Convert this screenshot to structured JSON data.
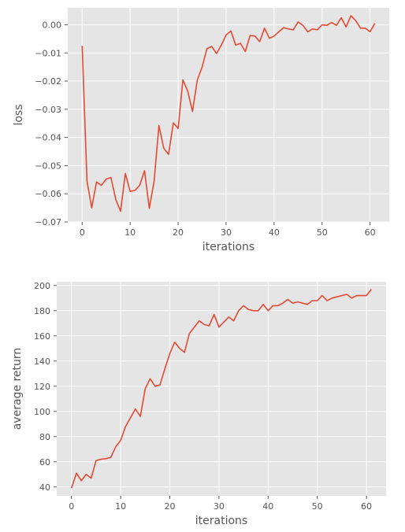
{
  "line_color": "#e24a33",
  "chart_data": [
    {
      "type": "line",
      "xlabel": "iterations",
      "ylabel": "loss",
      "xlim": [
        -3,
        64
      ],
      "ylim": [
        -0.07,
        0.006
      ],
      "xticks": [
        0,
        10,
        20,
        30,
        40,
        50,
        60
      ],
      "yticks": [
        -0.07,
        -0.06,
        -0.05,
        -0.04,
        -0.03,
        -0.02,
        -0.01,
        0.0
      ],
      "ytick_labels": [
        "−0.07",
        "−0.06",
        "−0.05",
        "−0.04",
        "−0.03",
        "−0.02",
        "−0.01",
        "0.00"
      ],
      "grid": true,
      "x": [
        0,
        1,
        2,
        3,
        4,
        5,
        6,
        7,
        8,
        9,
        10,
        11,
        12,
        13,
        14,
        15,
        16,
        17,
        18,
        19,
        20,
        21,
        22,
        23,
        24,
        25,
        26,
        27,
        28,
        29,
        30,
        31,
        32,
        33,
        34,
        35,
        36,
        37,
        38,
        39,
        40,
        41,
        42,
        43,
        44,
        45,
        46,
        47,
        48,
        49,
        50,
        51,
        52,
        53,
        54,
        55,
        56,
        57,
        58,
        59,
        60,
        61
      ],
      "y": [
        -0.0075,
        -0.0555,
        -0.065,
        -0.0558,
        -0.057,
        -0.0548,
        -0.0542,
        -0.062,
        -0.0662,
        -0.0528,
        -0.0592,
        -0.0588,
        -0.057,
        -0.0518,
        -0.0652,
        -0.0555,
        -0.0358,
        -0.0438,
        -0.046,
        -0.0348,
        -0.0368,
        -0.0196,
        -0.0235,
        -0.0308,
        -0.0196,
        -0.015,
        -0.0085,
        -0.0077,
        -0.0102,
        -0.0072,
        -0.0036,
        -0.0022,
        -0.0072,
        -0.0066,
        -0.0095,
        -0.0038,
        -0.004,
        -0.006,
        -0.0012,
        -0.0048,
        -0.004,
        -0.0025,
        -0.001,
        -0.0015,
        -0.0018,
        0.001,
        -0.0002,
        -0.0025,
        -0.0015,
        -0.0018,
        0.0,
        -0.0002,
        0.0008,
        -0.0002,
        0.0025,
        -0.0008,
        0.0032,
        0.0015,
        -0.0012,
        -0.0012,
        -0.0025,
        0.0005
      ]
    },
    {
      "type": "line",
      "xlabel": "iterations",
      "ylabel": "average return",
      "xlim": [
        -3,
        64
      ],
      "ylim": [
        33,
        203
      ],
      "xticks": [
        0,
        10,
        20,
        30,
        40,
        50,
        60
      ],
      "yticks": [
        40,
        60,
        80,
        100,
        120,
        140,
        160,
        180,
        200
      ],
      "ytick_labels": [
        "40",
        "60",
        "80",
        "100",
        "120",
        "140",
        "160",
        "180",
        "200"
      ],
      "grid": true,
      "x": [
        0,
        1,
        2,
        3,
        4,
        5,
        6,
        7,
        8,
        9,
        10,
        11,
        12,
        13,
        14,
        15,
        16,
        17,
        18,
        19,
        20,
        21,
        22,
        23,
        24,
        25,
        26,
        27,
        28,
        29,
        30,
        31,
        32,
        33,
        34,
        35,
        36,
        37,
        38,
        39,
        40,
        41,
        42,
        43,
        44,
        45,
        46,
        47,
        48,
        49,
        50,
        51,
        52,
        53,
        54,
        55,
        56,
        57,
        58,
        59,
        60,
        61
      ],
      "y": [
        39,
        51,
        45,
        50,
        47,
        61,
        62,
        62.5,
        63.5,
        72,
        77,
        88,
        95,
        102,
        96,
        118,
        126,
        120,
        121,
        134,
        146,
        155,
        150,
        147,
        162,
        167,
        172,
        169,
        168,
        177,
        167,
        171,
        175,
        172,
        180,
        184,
        181,
        180,
        180,
        185,
        180,
        184,
        184,
        186,
        189,
        186,
        187,
        186,
        185,
        188,
        188,
        192,
        188,
        190,
        191,
        192,
        193,
        190,
        192,
        192,
        192,
        197
      ]
    }
  ]
}
